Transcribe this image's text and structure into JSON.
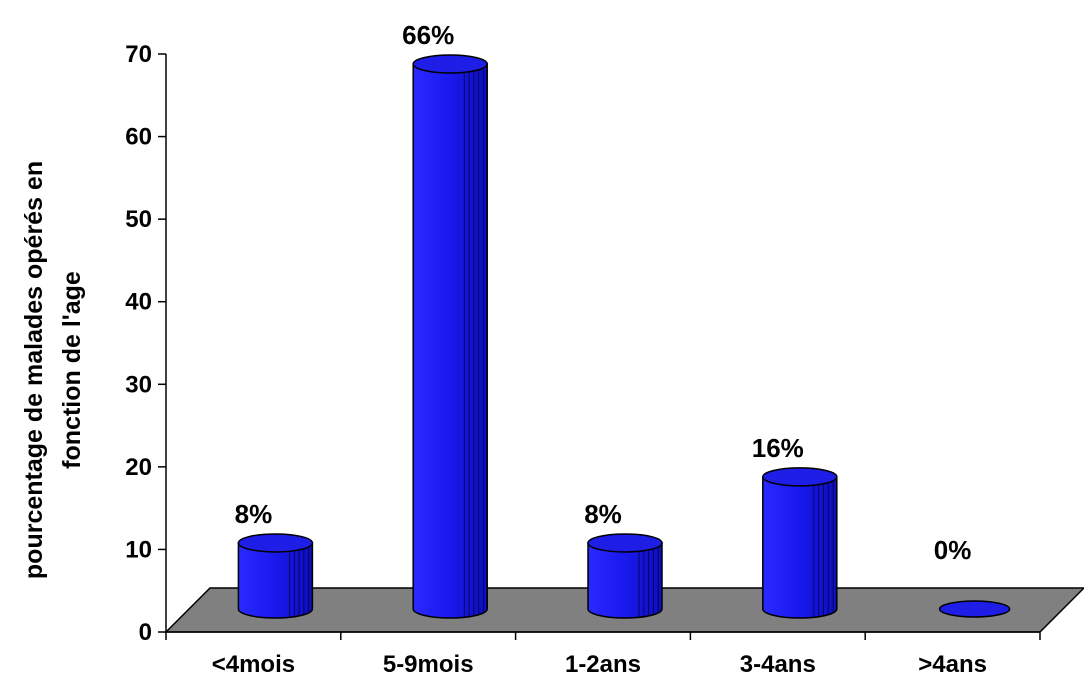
{
  "chart_data": {
    "type": "bar",
    "categories": [
      "<4mois",
      "5-9mois",
      "1-2ans",
      "3-4ans",
      ">4ans"
    ],
    "values": [
      8,
      66,
      8,
      16,
      0
    ],
    "data_labels": [
      "8%",
      "66%",
      "8%",
      "16%",
      "0%"
    ],
    "title": "",
    "xlabel": "",
    "ylabel_lines": [
      "pourcentage de malades opérés en",
      "fonction de l'age"
    ],
    "ylim": [
      0,
      70
    ],
    "yticks": [
      "0",
      "10",
      "20",
      "30",
      "40",
      "50",
      "60",
      "70"
    ],
    "grid": false,
    "legend": "none",
    "colors": {
      "bar_fill": "#1a1aff",
      "bar_top": "#1e1ee6",
      "bar_stroke": "#000000",
      "floor": "#808080"
    }
  }
}
